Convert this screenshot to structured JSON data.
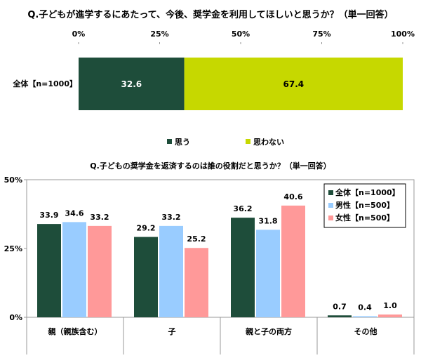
{
  "chart_data": [
    {
      "type": "bar",
      "orientation": "horizontal",
      "stacked": true,
      "title": "Q.子どもが進学するにあたって、今後、奨学金を利用してほしいと思うか？（単一回答）",
      "categories": [
        "全体【n=1000】"
      ],
      "xticks": [
        "0%",
        "25%",
        "50%",
        "75%",
        "100%"
      ],
      "xlim": [
        0,
        100
      ],
      "series": [
        {
          "name": "思う",
          "values": [
            32.6
          ],
          "color": "#1e4d3a"
        },
        {
          "name": "思わない",
          "values": [
            67.4
          ],
          "color": "#c6d800"
        }
      ],
      "legend": "bottom"
    },
    {
      "type": "bar",
      "orientation": "vertical",
      "title": "Q.子どもの奨学金を返済するのは誰の役割だと思うか？（単一回答）",
      "categories": [
        "親（親族含む）",
        "子",
        "親と子の両方",
        "その他"
      ],
      "yticks": [
        "50%",
        "25%",
        "0%"
      ],
      "ylim": [
        0,
        50
      ],
      "series": [
        {
          "name": "全体【n=1000】",
          "values": [
            33.9,
            29.2,
            36.2,
            0.7
          ],
          "color": "#1e4d3a"
        },
        {
          "name": "男性【n=500】",
          "values": [
            34.6,
            33.2,
            31.8,
            0.4
          ],
          "color": "#99ccff"
        },
        {
          "name": "女性【n=500】",
          "values": [
            33.2,
            25.2,
            40.6,
            1.0
          ],
          "color": "#ff9999"
        }
      ],
      "legend": "top-right"
    }
  ]
}
